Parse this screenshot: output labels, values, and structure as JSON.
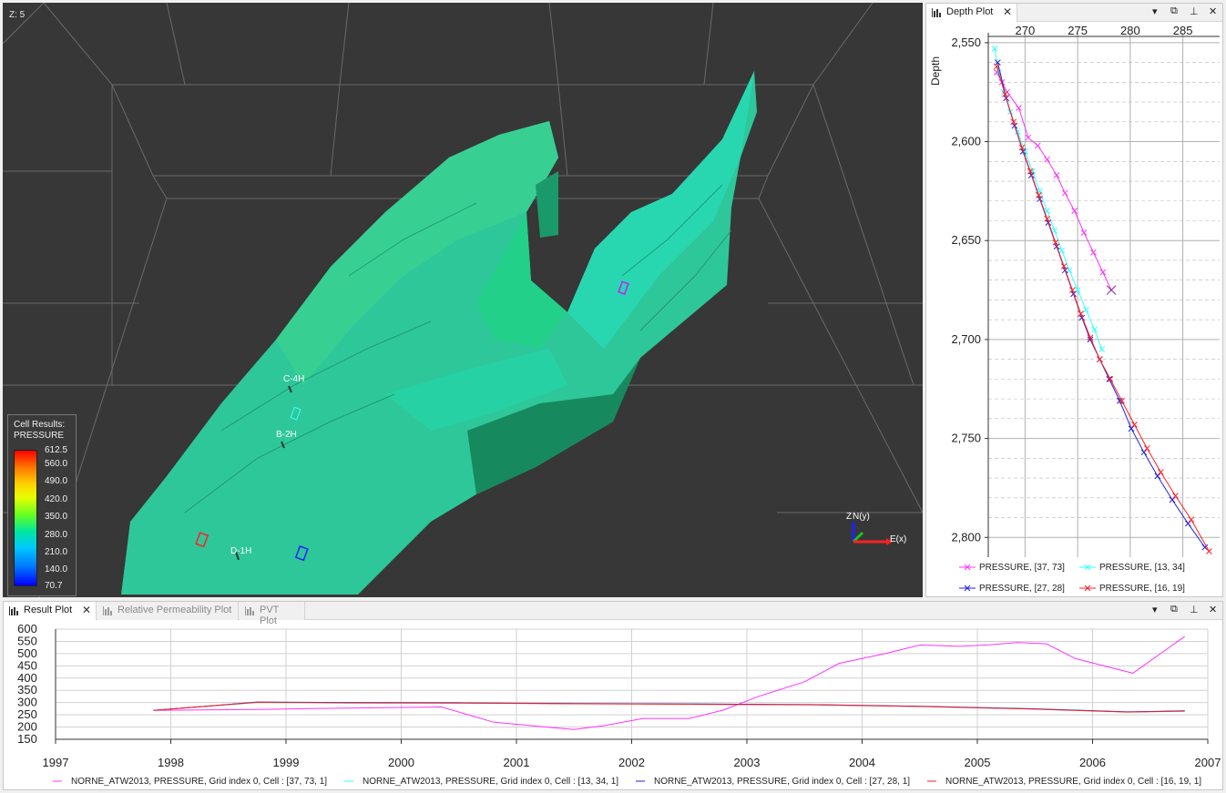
{
  "view3d": {
    "z_label": "Z: 5",
    "legend": {
      "title_line1": "Cell Results:",
      "title_line2": "PRESSURE",
      "ticks": [
        "612.5",
        "560.0",
        "490.0",
        "420.0",
        "350.0",
        "280.0",
        "210.0",
        "140.0",
        "70.7"
      ]
    },
    "wells": [
      {
        "name": "C-4H"
      },
      {
        "name": "B-2H"
      },
      {
        "name": "D-1H"
      }
    ],
    "axis": {
      "z": "Z",
      "n": "N(y)",
      "e": "E(x)"
    }
  },
  "depth_plot": {
    "tab_label": "Depth Plot",
    "chart_data": {
      "type": "scatter",
      "ylabel": "Depth",
      "x_ticks": [
        "270",
        "275",
        "280",
        "285"
      ],
      "y_ticks": [
        "2,550",
        "2,600",
        "2,650",
        "2,700",
        "2,750",
        "2,800"
      ],
      "xlim": [
        266.5,
        288.5
      ],
      "ylim": [
        2545,
        2810
      ],
      "series": [
        {
          "name": "PRESSURE, [37, 73]",
          "color": "#ff33ff",
          "x": [
            267.3,
            267.8,
            268.3,
            269.4,
            270.3,
            271.2,
            272.1,
            273.0,
            273.8,
            274.7,
            275.6,
            276.5,
            277.4,
            278.2
          ],
          "y": [
            2565,
            2570,
            2575,
            2583,
            2598,
            2602,
            2609,
            2617,
            2626,
            2635,
            2646,
            2656,
            2666,
            2675
          ]
        },
        {
          "name": "PRESSURE, [13, 34]",
          "color": "#33ffff",
          "x": [
            267.1,
            267.5,
            268.0,
            268.6,
            269.3,
            270.0,
            270.7,
            271.4,
            272.1,
            272.8,
            273.5,
            274.2,
            275.0,
            275.8,
            276.6,
            277.3
          ],
          "y": [
            2553,
            2565,
            2575,
            2585,
            2595,
            2605,
            2615,
            2625,
            2635,
            2645,
            2655,
            2665,
            2675,
            2685,
            2695,
            2705
          ]
        },
        {
          "name": "PRESSURE, [27, 28]",
          "color": "#2020e0",
          "x": [
            267.4,
            268.2,
            269.0,
            269.8,
            270.6,
            271.4,
            272.2,
            273.0,
            273.8,
            274.6,
            275.4,
            276.2,
            277.1,
            278.0,
            279.0,
            280.1,
            281.3,
            282.6,
            284.0,
            285.5,
            287.1
          ],
          "y": [
            2560,
            2578,
            2592,
            2605,
            2617,
            2629,
            2641,
            2653,
            2665,
            2677,
            2689,
            2700,
            2710,
            2720,
            2731,
            2745,
            2757,
            2769,
            2781,
            2793,
            2805
          ]
        },
        {
          "name": "PRESSURE, [16, 19]",
          "color": "#ff2020",
          "x": [
            267.3,
            268.1,
            268.9,
            269.7,
            270.5,
            271.3,
            272.1,
            272.9,
            273.7,
            274.5,
            275.3,
            276.2,
            277.1,
            278.1,
            279.2,
            280.4,
            281.6,
            282.9,
            284.3,
            285.8,
            287.5
          ],
          "y": [
            2562,
            2576,
            2590,
            2603,
            2615,
            2627,
            2639,
            2651,
            2663,
            2675,
            2687,
            2699,
            2710,
            2720,
            2731,
            2743,
            2755,
            2767,
            2779,
            2791,
            2807
          ]
        }
      ]
    },
    "outlier": {
      "x": 278.2,
      "y": 2675
    }
  },
  "result_plot": {
    "tabs": [
      {
        "label": "Result Plot",
        "active": true
      },
      {
        "label": "Relative Permeability Plot",
        "active": false
      },
      {
        "label": "PVT Plot",
        "active": false
      }
    ],
    "chart_data": {
      "type": "line",
      "x_ticks": [
        "1997",
        "1998",
        "1999",
        "2000",
        "2001",
        "2002",
        "2003",
        "2004",
        "2005",
        "2006",
        "2007"
      ],
      "y_ticks": [
        "600",
        "550",
        "500",
        "450",
        "400",
        "350",
        "300",
        "250",
        "200",
        "150"
      ],
      "xlim": [
        1997,
        2007
      ],
      "ylim": [
        150,
        600
      ],
      "series": [
        {
          "name": "NORNE_ATW2013, PRESSURE, Grid index 0, Cell : [37, 73, 1]",
          "color": "#ff33ff",
          "x": [
            1997.85,
            1998.3,
            1998.75,
            1999.3,
            1999.8,
            2000.35,
            2000.8,
            2001.25,
            2001.5,
            2001.75,
            2002.1,
            2002.5,
            2002.8,
            2003.1,
            2003.5,
            2003.8,
            2004.2,
            2004.5,
            2004.85,
            2005.1,
            2005.35,
            2005.6,
            2005.85,
            2006.1,
            2006.35,
            2006.8
          ],
          "y": [
            268,
            270,
            272,
            276,
            279,
            282,
            220,
            200,
            190,
            205,
            235,
            235,
            270,
            325,
            385,
            460,
            500,
            535,
            530,
            536,
            545,
            540,
            480,
            450,
            420,
            570
          ]
        },
        {
          "name": "NORNE_ATW2013, PRESSURE, Grid index 0, Cell : [13, 34, 1]",
          "color": "#33ffff",
          "x": [
            1997.85,
            1998.75,
            1999.5,
            2000.5,
            2001.5,
            2002.5,
            2003.5,
            2004.5,
            2005.5,
            2006.3,
            2006.8
          ],
          "y": [
            268,
            300,
            298,
            298,
            296,
            294,
            292,
            285,
            275,
            262,
            266
          ]
        },
        {
          "name": "NORNE_ATW2013, PRESSURE, Grid index 0, Cell : [27, 28, 1]",
          "color": "#2020e0",
          "x": [
            1997.85,
            1998.75,
            1999.5,
            2000.5,
            2001.5,
            2002.5,
            2003.5,
            2004.5,
            2005.5,
            2006.3,
            2006.8
          ],
          "y": [
            268,
            302,
            300,
            299,
            296,
            294,
            292,
            285,
            274,
            262,
            266
          ]
        },
        {
          "name": "NORNE_ATW2013, PRESSURE, Grid index 0, Cell : [16, 19, 1]",
          "color": "#ff2020",
          "x": [
            1997.85,
            1998.75,
            1999.5,
            2000.5,
            2001.5,
            2002.5,
            2003.5,
            2004.5,
            2005.5,
            2006.3,
            2006.8
          ],
          "y": [
            268,
            301,
            299,
            298,
            295,
            293,
            291,
            284,
            273,
            261,
            265
          ]
        }
      ]
    }
  }
}
